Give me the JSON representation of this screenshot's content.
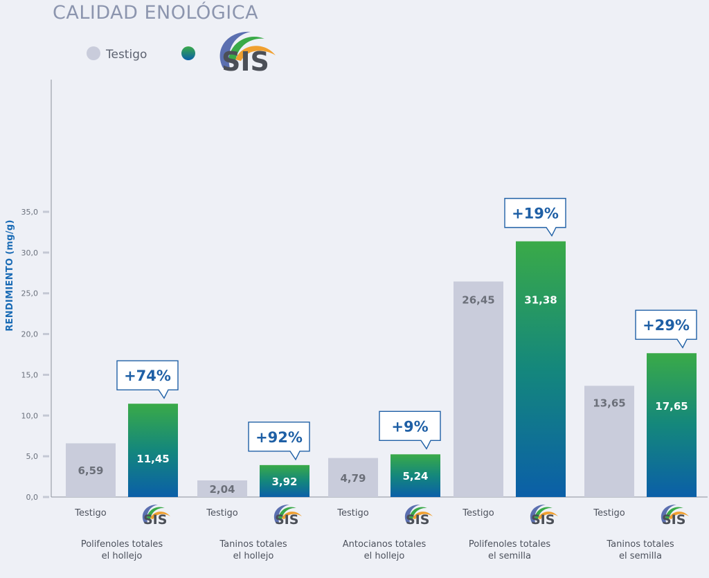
{
  "title": "CALIDAD ENOLÓGICA",
  "legend": {
    "control_label": "Testigo",
    "brand_text": "SIS"
  },
  "colors": {
    "control": "#c9ccdb",
    "sis_top": "#3aaa48",
    "sis_bottom": "#0b5fa8",
    "axis_text": "#1a6bb5",
    "callout": "#1e5fa5"
  },
  "chart_data": {
    "type": "bar",
    "ylabel": "RENDIMIENTO (mg/g)",
    "ylim": [
      0,
      35
    ],
    "yticks": [
      "0,0",
      "5,0",
      "10,0",
      "15,0",
      "20,0",
      "25,0",
      "30,0",
      "35,0"
    ],
    "series": [
      {
        "name": "Testigo",
        "values": [
          6.59,
          2.04,
          4.79,
          26.45,
          13.65
        ]
      },
      {
        "name": "SIS",
        "values": [
          11.45,
          3.92,
          5.24,
          31.38,
          17.65
        ]
      }
    ],
    "value_labels": {
      "testigo": [
        "6,59",
        "2,04",
        "4,79",
        "26,45",
        "13,65"
      ],
      "sis": [
        "11,45",
        "3,92",
        "5,24",
        "31,38",
        "17,65"
      ]
    },
    "groups": [
      {
        "line1": "Polifenoles totales",
        "line2": "el hollejo",
        "increase": "+74%"
      },
      {
        "line1": "Taninos totales",
        "line2": "el hollejo",
        "increase": "+92%"
      },
      {
        "line1": "Antocianos totales",
        "line2": "el hollejo",
        "increase": "+9%"
      },
      {
        "line1": "Polifenoles totales",
        "line2": "el semilla",
        "increase": "+19%"
      },
      {
        "line1": "Taninos totales",
        "line2": "el semilla",
        "increase": "+29%"
      }
    ],
    "x_control_label": "Testigo",
    "x_sis_label": "SIS"
  }
}
